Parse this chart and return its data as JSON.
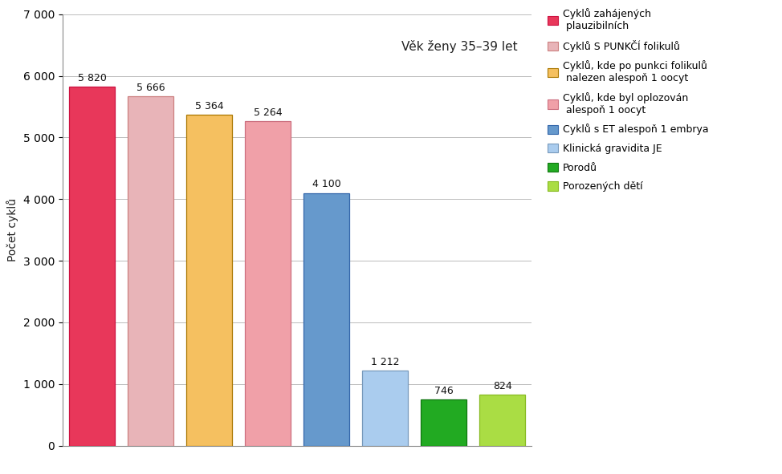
{
  "values": [
    5820,
    5666,
    5364,
    5264,
    4100,
    1212,
    746,
    824
  ],
  "labels": [
    "5 820",
    "5 666",
    "5 364",
    "5 264",
    "4 100",
    "1 212",
    "746",
    "824"
  ],
  "bar_colors": [
    "#e8375a",
    "#e8b4b8",
    "#f5c060",
    "#f0a0a8",
    "#6699cc",
    "#aaccee",
    "#22aa22",
    "#aadd44"
  ],
  "bar_edge_colors": [
    "#cc1040",
    "#cc8080",
    "#aa7700",
    "#cc7080",
    "#3366aa",
    "#7799bb",
    "#117711",
    "#88bb22"
  ],
  "legend_colors": [
    "#e8375a",
    "#e8b4b8",
    "#f5c060",
    "#f0a0a8",
    "#6699cc",
    "#aaccee",
    "#22aa22",
    "#aadd44"
  ],
  "legend_edge_colors": [
    "#cc1040",
    "#cc8080",
    "#aa7700",
    "#cc7080",
    "#3366aa",
    "#7799bb",
    "#117711",
    "#88bb22"
  ],
  "legend_labels": [
    "Cyklů zahájených\n plauzibilních",
    "Cyklů S PUNKČÍ folikulů",
    "Cyklů, kde po punkci folikulů\n nalezen alespoň 1 oocyt",
    "Cyklů, kde byl oplozován\n alespoň 1 oocyt",
    "Cyklů s ET alespoň 1 embrya",
    "Klinická gravidita JE",
    "Porodů",
    "Porozených dětí"
  ],
  "ylabel": "Počet cyklů",
  "ylim": [
    0,
    7000
  ],
  "yticks": [
    0,
    1000,
    2000,
    3000,
    4000,
    5000,
    6000,
    7000
  ],
  "annotation": "Věk ženy 35–39 let",
  "background_color": "#ffffff",
  "plot_bg_color": "#ffffff",
  "grid_color": "#bbbbbb"
}
